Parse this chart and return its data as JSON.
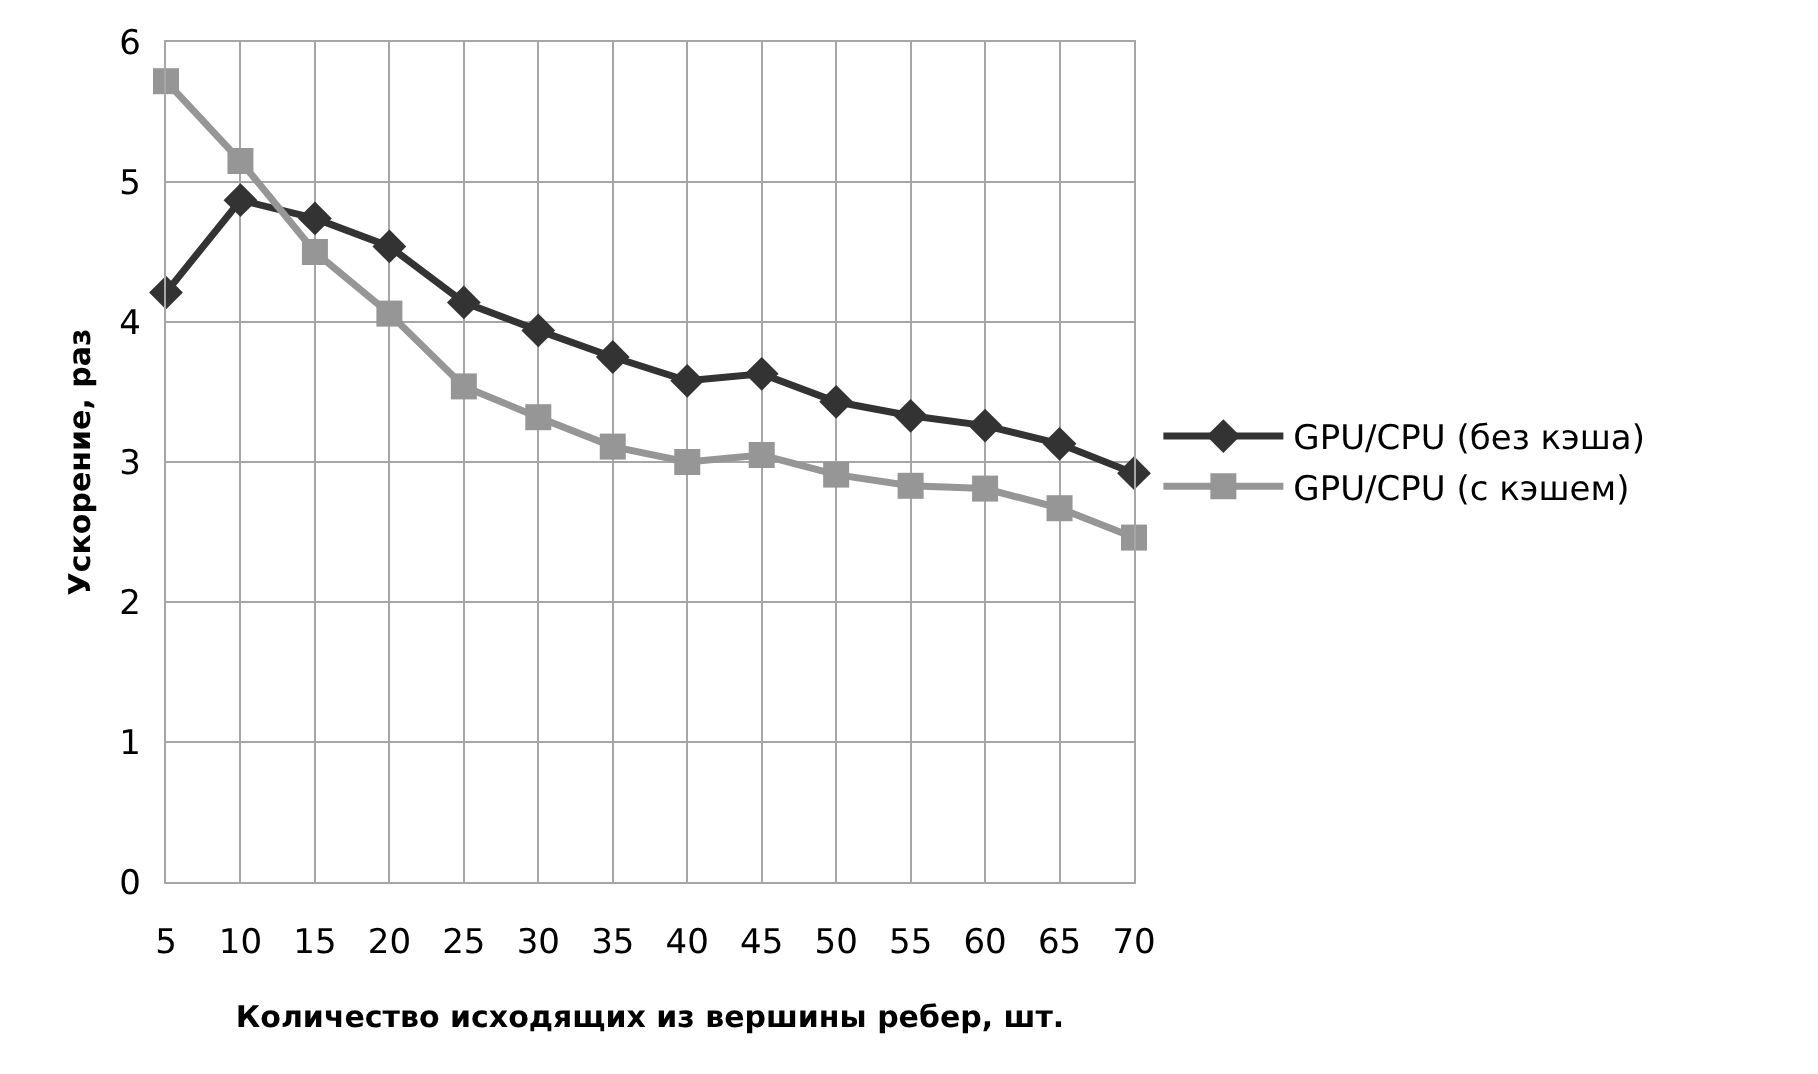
{
  "chart_data": {
    "type": "line",
    "xlabel": "Количество исходящих из вершины ребер, шт.",
    "ylabel": "Ускорение, раз",
    "categories": [
      "5",
      "10",
      "15",
      "20",
      "25",
      "30",
      "35",
      "40",
      "45",
      "50",
      "55",
      "60",
      "65",
      "70"
    ],
    "series": [
      {
        "name": "GPU/CPU (без кэша)",
        "color": "#333333",
        "marker": "diamond",
        "values": [
          4.21,
          4.87,
          4.74,
          4.54,
          4.14,
          3.94,
          3.75,
          3.58,
          3.63,
          3.43,
          3.33,
          3.26,
          3.13,
          2.92
        ]
      },
      {
        "name": "GPU/CPU (с кэшем)",
        "color": "#969696",
        "marker": "square",
        "values": [
          5.72,
          5.15,
          4.5,
          4.06,
          3.54,
          3.32,
          3.11,
          3.0,
          3.05,
          2.91,
          2.83,
          2.81,
          2.67,
          2.46
        ]
      }
    ],
    "ylim": [
      0,
      6
    ],
    "yticks": [
      0,
      1,
      2,
      3,
      4,
      5,
      6
    ],
    "grid": true,
    "legend": "right",
    "line_style": "solid"
  }
}
